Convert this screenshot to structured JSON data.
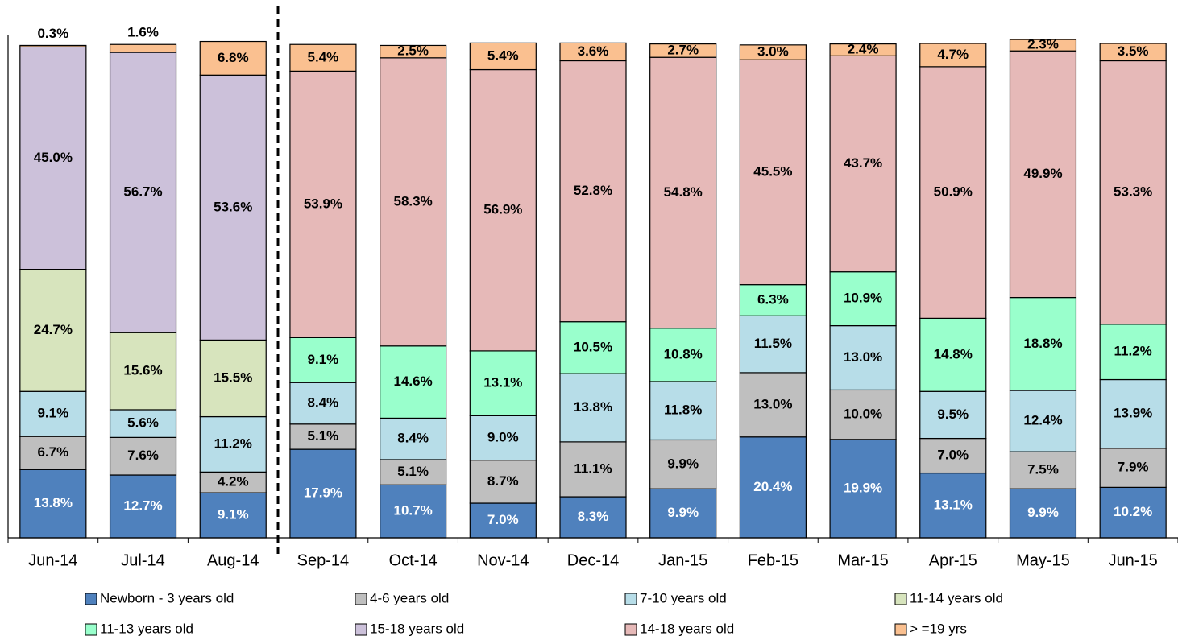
{
  "chart_data": {
    "type": "stacked_bar",
    "categories": [
      "Jun-14",
      "Jul-14",
      "Aug-14",
      "Sep-14",
      "Oct-14",
      "Nov-14",
      "Dec-14",
      "Jan-15",
      "Feb-15",
      "Mar-15",
      "Apr-15",
      "May-15",
      "Jun-15"
    ],
    "ylim": [
      0,
      100
    ],
    "series": [
      {
        "name": "Newborn - 3 years old",
        "color": "#4f81bd",
        "values": [
          13.8,
          12.7,
          9.1,
          17.9,
          10.7,
          7.0,
          8.3,
          9.9,
          20.4,
          19.9,
          13.1,
          9.9,
          10.2
        ],
        "value_labels": [
          "13.8%",
          "12.7%",
          "9.1%",
          "17.9%",
          "10.7%",
          "7.0%",
          "8.3%",
          "9.9%",
          "20.4%",
          "19.9%",
          "13.1%",
          "9.9%",
          "10.2%"
        ]
      },
      {
        "name": "4-6 years old",
        "color": "#bfbfbf",
        "values": [
          6.7,
          7.6,
          4.2,
          5.1,
          5.1,
          8.7,
          11.1,
          9.9,
          13.0,
          10.0,
          7.0,
          7.5,
          7.9
        ],
        "value_labels": [
          "6.7%",
          "7.6%",
          "4.2%",
          "5.1%",
          "5.1%",
          "8.7%",
          "11.1%",
          "9.9%",
          "13.0%",
          "10.0%",
          "7.0%",
          "7.5%",
          "7.9%"
        ]
      },
      {
        "name": "7-10 years old",
        "color": "#b7dde8",
        "values": [
          9.1,
          5.6,
          11.2,
          8.4,
          8.4,
          9.0,
          13.8,
          11.8,
          11.5,
          13.0,
          9.5,
          12.4,
          13.9
        ],
        "value_labels": [
          "9.1%",
          "5.6%",
          "11.2%",
          "8.4%",
          "8.4%",
          "9.0%",
          "13.8%",
          "11.8%",
          "11.5%",
          "13.0%",
          "9.5%",
          "12.4%",
          "13.9%"
        ]
      },
      {
        "name": "11-14 years old",
        "color": "#d7e4bd",
        "values": [
          24.7,
          15.6,
          15.5,
          null,
          null,
          null,
          null,
          null,
          null,
          null,
          null,
          null,
          null
        ],
        "value_labels": [
          "24.7%",
          "15.6%",
          "15.5%",
          null,
          null,
          null,
          null,
          null,
          null,
          null,
          null,
          null,
          null
        ]
      },
      {
        "name": "11-13 years old",
        "color": "#99ffcc",
        "values": [
          null,
          null,
          null,
          9.1,
          14.6,
          13.1,
          10.5,
          10.8,
          6.3,
          10.9,
          14.8,
          18.8,
          11.2
        ],
        "value_labels": [
          null,
          null,
          null,
          "9.1%",
          "14.6%",
          "13.1%",
          "10.5%",
          "10.8%",
          "6.3%",
          "10.9%",
          "14.8%",
          "18.8%",
          "11.2%"
        ]
      },
      {
        "name": "15-18 years old",
        "color": "#ccc1da",
        "values": [
          45.0,
          56.7,
          53.6,
          null,
          null,
          null,
          null,
          null,
          null,
          null,
          null,
          null,
          null
        ],
        "value_labels": [
          "45.0%",
          "56.7%",
          "53.6%",
          null,
          null,
          null,
          null,
          null,
          null,
          null,
          null,
          null,
          null
        ]
      },
      {
        "name": "14-18  years old",
        "color": "#e6b9b8",
        "values": [
          null,
          null,
          null,
          53.9,
          58.3,
          56.9,
          52.8,
          54.8,
          45.5,
          43.7,
          50.9,
          49.9,
          53.3
        ],
        "value_labels": [
          null,
          null,
          null,
          "53.9%",
          "58.3%",
          "56.9%",
          "52.8%",
          "54.8%",
          "45.5%",
          "43.7%",
          "50.9%",
          "49.9%",
          "53.3%"
        ]
      },
      {
        "name": "> =19 yrs",
        "color": "#fac090",
        "values": [
          0.3,
          1.6,
          6.8,
          5.4,
          2.5,
          5.4,
          3.6,
          2.7,
          3.0,
          2.4,
          4.7,
          2.3,
          3.5
        ],
        "value_labels": [
          "0.3%",
          "1.6%",
          "6.8%",
          "5.4%",
          "2.5%",
          "5.4%",
          "3.6%",
          "2.7%",
          "3.0%",
          "2.4%",
          "4.7%",
          "2.3%",
          "3.5%"
        ]
      }
    ]
  }
}
